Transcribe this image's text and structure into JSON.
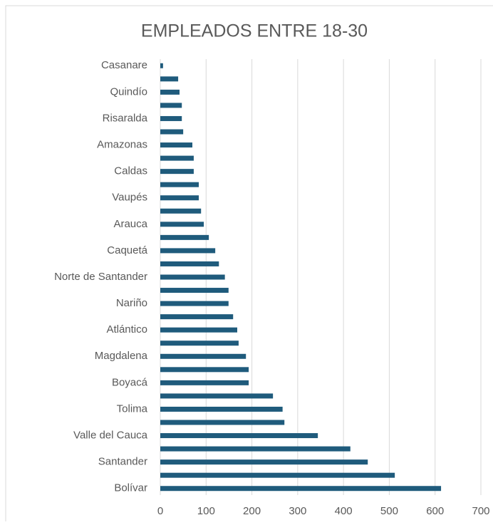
{
  "chart_data": {
    "type": "bar",
    "orientation": "horizontal",
    "title": "EMPLEADOS ENTRE 18-30",
    "categories": [
      "Casanare",
      null,
      "Quindío",
      null,
      "Risaralda",
      null,
      "Amazonas",
      null,
      "Caldas",
      null,
      "Vaupés",
      null,
      "Arauca",
      null,
      "Caquetá",
      null,
      "Norte de Santander",
      null,
      "Nariño",
      null,
      "Atlántico",
      null,
      "Magdalena",
      null,
      "Boyacá",
      null,
      "Tolima",
      null,
      "Valle del Cauca",
      null,
      "Santander",
      null,
      "Bolívar"
    ],
    "values": [
      6,
      39,
      42,
      47,
      47,
      50,
      70,
      73,
      73,
      84,
      84,
      89,
      95,
      106,
      120,
      128,
      141,
      149,
      149,
      159,
      168,
      171,
      187,
      193,
      193,
      246,
      267,
      271,
      344,
      415,
      453,
      512,
      613
    ],
    "color": "#1f5b7c",
    "xlim": [
      0,
      700
    ],
    "xticks": [
      0,
      100,
      200,
      300,
      400,
      500,
      600,
      700
    ],
    "grid": true
  }
}
